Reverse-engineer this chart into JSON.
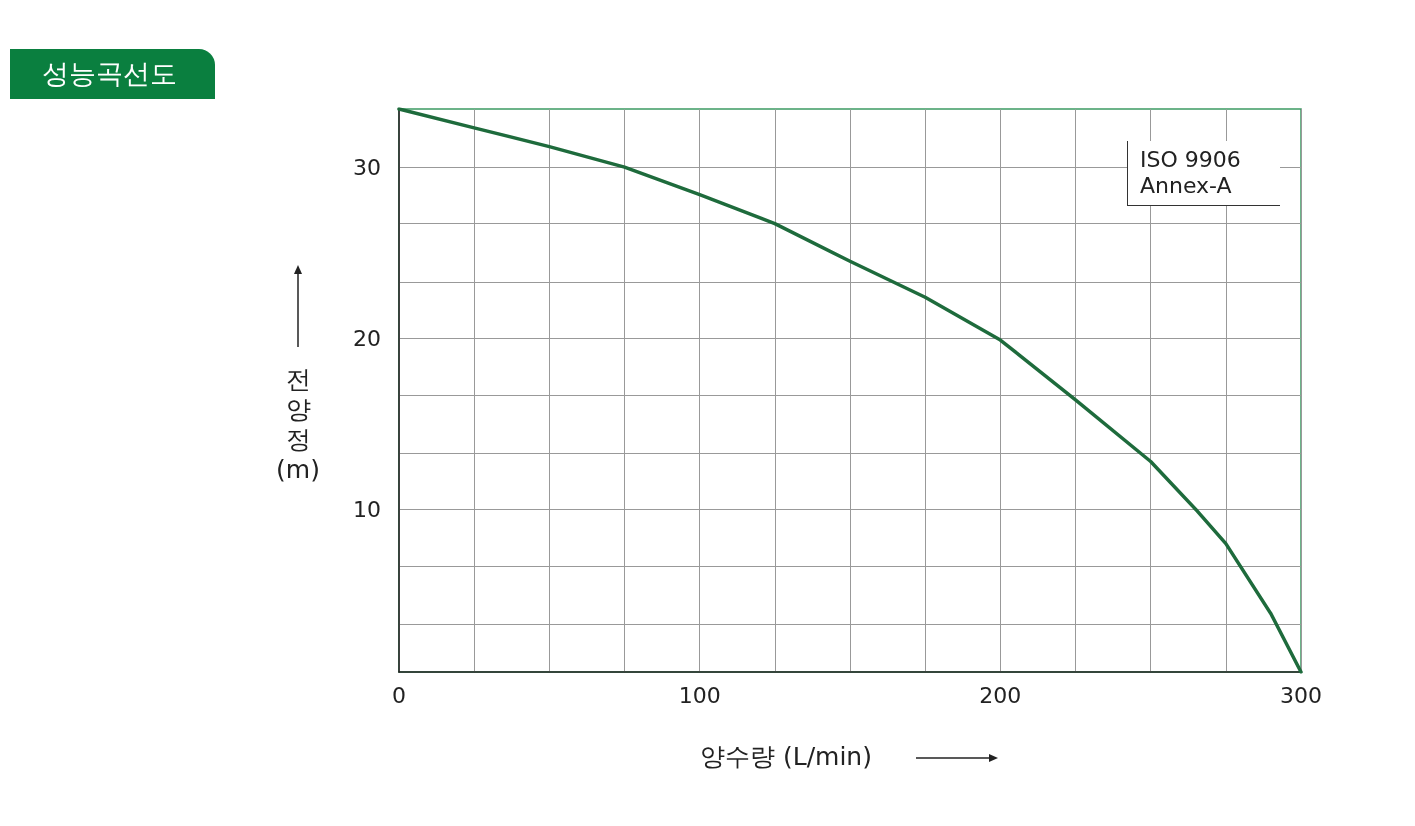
{
  "chart_data": {
    "type": "line",
    "title": "성능곡선도",
    "xlabel": "양수량 (L/min)",
    "ylabel": "전양정 (m)",
    "annotations": [
      "ISO 9906 Annex-A"
    ],
    "x": [
      0,
      25,
      50,
      75,
      100,
      125,
      150,
      175,
      200,
      225,
      250,
      265,
      275,
      290,
      300
    ],
    "series": [
      {
        "color": "#1e6b3c",
        "values": [
          33.4,
          32.3,
          31.2,
          30.0,
          28.4,
          26.7,
          24.5,
          22.4,
          19.9,
          16.4,
          12.8,
          10.0,
          8.0,
          3.9,
          0.5
        ]
      }
    ],
    "xlim": [
      0,
      300
    ],
    "ylim": [
      0.5,
      33.4
    ],
    "xticks": [
      0,
      {
        "value": 25,
        "label": null
      },
      {
        "value": 50,
        "label": null
      },
      {
        "value": 75,
        "label": null
      },
      100,
      {
        "value": 125,
        "label": null
      },
      {
        "value": 150,
        "label": null
      },
      {
        "value": 175,
        "label": null
      },
      200,
      {
        "value": 225,
        "label": null
      },
      {
        "value": 250,
        "label": null
      },
      {
        "value": 275,
        "label": null
      },
      300
    ],
    "yticks": [
      {
        "value": 3.3,
        "label": null
      },
      {
        "value": 6.7,
        "label": null
      },
      10,
      {
        "value": 13.3,
        "label": null
      },
      {
        "value": 16.7,
        "label": null
      },
      20,
      {
        "value": 23.3,
        "label": null
      },
      {
        "value": 26.7,
        "label": null
      },
      30
    ],
    "grid": true,
    "marker": "none",
    "line_style": "solid"
  }
}
